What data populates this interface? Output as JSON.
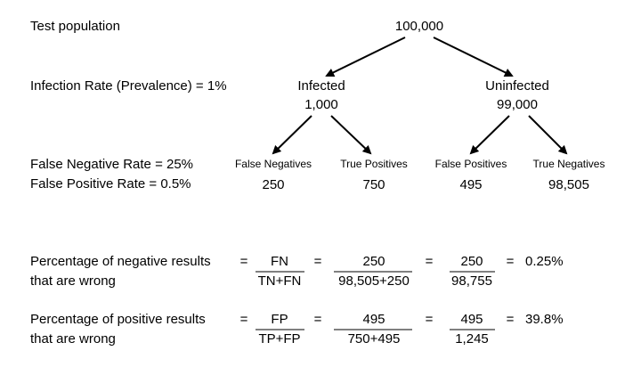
{
  "labels": {
    "population": "Test population",
    "prevalence": "Infection Rate (Prevalence) = 1%",
    "false_negative_rate": "False Negative Rate = 25%",
    "false_positive_rate": "False Positive Rate = 0.5%"
  },
  "tree": {
    "root": "100,000",
    "level1": [
      {
        "name": "Infected",
        "count": "1,000"
      },
      {
        "name": "Uninfected",
        "count": "99,000"
      }
    ],
    "level2": [
      {
        "name": "False Negatives",
        "count": "250"
      },
      {
        "name": "True Positives",
        "count": "750"
      },
      {
        "name": "False Positives",
        "count": "495"
      },
      {
        "name": "True Negatives",
        "count": "98,505"
      }
    ]
  },
  "operator": "=",
  "formulas": [
    {
      "label": [
        "Percentage of negative results",
        "that are wrong"
      ],
      "terms": [
        {
          "num": "FN",
          "den": "TN+FN"
        },
        {
          "num": "250",
          "den": "98,505+250"
        },
        {
          "num": "250",
          "den": "98,755"
        }
      ],
      "result": "0.25%"
    },
    {
      "label": [
        "Percentage of positive results",
        "that are wrong"
      ],
      "terms": [
        {
          "num": "FP",
          "den": "TP+FP"
        },
        {
          "num": "495",
          "den": "750+495"
        },
        {
          "num": "495",
          "den": "1,245"
        }
      ],
      "result": "39.8%"
    }
  ]
}
